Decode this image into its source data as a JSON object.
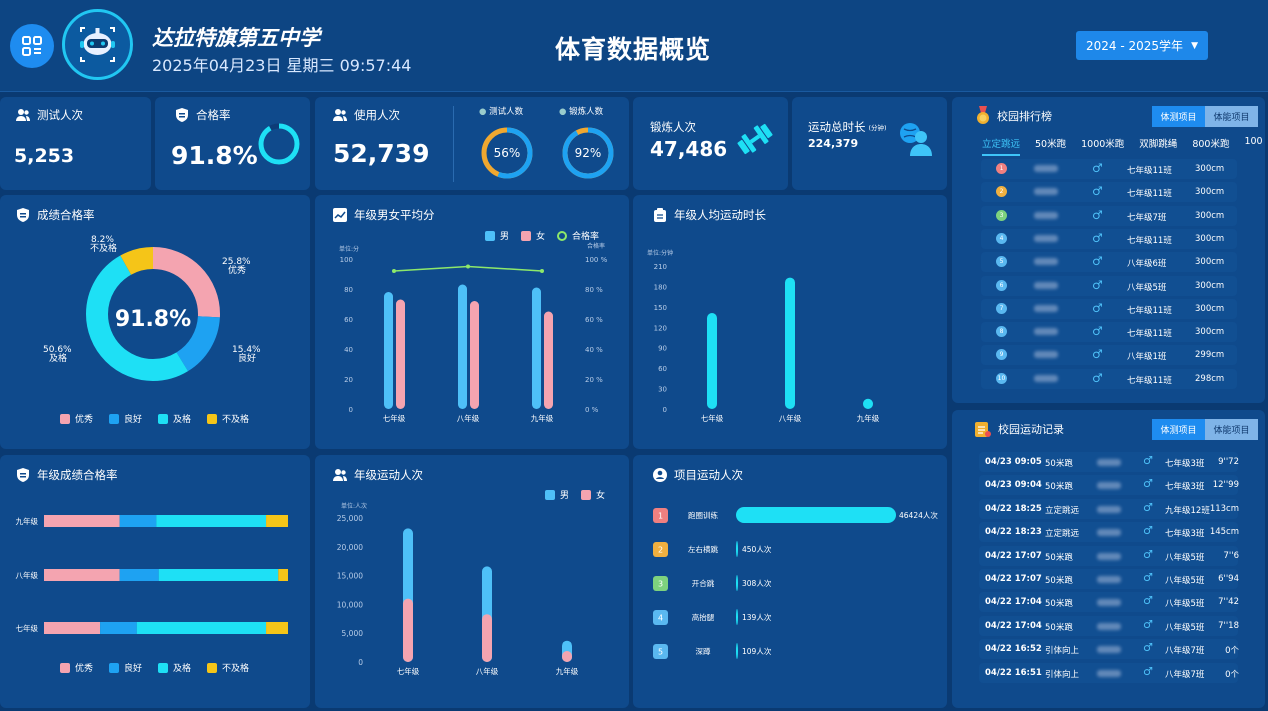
{
  "header": {
    "school_name": "达拉特旗第五中学",
    "datetime": "2025年04月23日 星期三 09:57:44",
    "title": "体育数据概览",
    "year_select": "2024 - 2025学年"
  },
  "stats": {
    "test_count_label": "测试人次",
    "test_count": "5,253",
    "pass_rate_label": "合格率",
    "pass_rate": "91.8%",
    "pass_rate_value": 91.8,
    "usage_label": "使用人次",
    "usage": "52,739",
    "test_people_label": "测试人数",
    "test_people_pct": "56%",
    "test_people_value": 56,
    "exercise_people_label": "锻炼人数",
    "exercise_people_pct": "92%",
    "exercise_people_value": 92,
    "exercise_count_label": "锻炼人次",
    "exercise_count": "47,486",
    "duration_label": "运动总时长",
    "duration_unit": "(分钟)",
    "duration": "224,379"
  },
  "score_pass": {
    "title": "成绩合格率",
    "center": "91.8%",
    "segments": [
      {
        "name": "优秀",
        "pct": 25.8,
        "label": "25.8%",
        "color": "#f4a4b0"
      },
      {
        "name": "良好",
        "pct": 15.4,
        "label": "15.4%",
        "color": "#1ea2f2"
      },
      {
        "name": "及格",
        "pct": 50.6,
        "label": "50.6%",
        "color": "#1ee0f5"
      },
      {
        "name": "不及格",
        "pct": 8.2,
        "label": "8.2%",
        "color": "#f5c518"
      }
    ],
    "legend": [
      "优秀",
      "良好",
      "及格",
      "不及格"
    ]
  },
  "grade_avg": {
    "title": "年级男女平均分",
    "legend_male": "男",
    "legend_female": "女",
    "legend_rate": "合格率",
    "left_unit": "单位:分",
    "right_unit": "合格率",
    "chart_data": {
      "type": "bar",
      "categories": [
        "七年级",
        "八年级",
        "九年级"
      ],
      "series": [
        {
          "name": "男",
          "values": [
            78,
            83,
            81
          ]
        },
        {
          "name": "女",
          "values": [
            73,
            72,
            65
          ]
        },
        {
          "name": "合格率",
          "values": [
            92,
            95,
            92
          ]
        }
      ],
      "ylim": [
        0,
        100
      ],
      "y_ticks": [
        "100",
        "80",
        "60",
        "40",
        "20",
        "0"
      ],
      "y2_ticks": [
        "100 %",
        "80 %",
        "60 %",
        "40 %",
        "20 %",
        "0 %"
      ]
    }
  },
  "grade_duration": {
    "title": "年级人均运动时长",
    "unit": "单位:分钟",
    "chart_data": {
      "type": "bar",
      "categories": [
        "七年级",
        "八年级",
        "九年级"
      ],
      "values": [
        141,
        193,
        15
      ],
      "ylim": [
        0,
        210
      ],
      "y_ticks": [
        "210",
        "180",
        "150",
        "120",
        "90",
        "60",
        "30",
        "0"
      ]
    }
  },
  "rank": {
    "title": "校园排行榜",
    "tab1": "体测项目",
    "tab2": "体能项目",
    "subtabs": [
      "立定跳远",
      "50米跑",
      "1000米跑",
      "双脚跳绳",
      "800米跑",
      "100"
    ],
    "rows": [
      {
        "no": "1",
        "cls": "七年级11班",
        "val": "300cm",
        "c": "#f08080"
      },
      {
        "no": "2",
        "cls": "七年级11班",
        "val": "300cm",
        "c": "#f0b040"
      },
      {
        "no": "3",
        "cls": "七年级7班",
        "val": "300cm",
        "c": "#7ed27e"
      },
      {
        "no": "4",
        "cls": "七年级11班",
        "val": "300cm",
        "c": "#5ab8f0"
      },
      {
        "no": "5",
        "cls": "八年级6班",
        "val": "300cm",
        "c": "#5ab8f0"
      },
      {
        "no": "6",
        "cls": "八年级5班",
        "val": "300cm",
        "c": "#5ab8f0"
      },
      {
        "no": "7",
        "cls": "七年级11班",
        "val": "300cm",
        "c": "#5ab8f0"
      },
      {
        "no": "8",
        "cls": "七年级11班",
        "val": "300cm",
        "c": "#5ab8f0"
      },
      {
        "no": "9",
        "cls": "八年级1班",
        "val": "299cm",
        "c": "#5ab8f0"
      },
      {
        "no": "10",
        "cls": "七年级11班",
        "val": "298cm",
        "c": "#5ab8f0"
      }
    ],
    "gender": "♂"
  },
  "grade_pass": {
    "title": "年级成绩合格率",
    "chart_data": {
      "type": "bar",
      "categories": [
        "九年级",
        "八年级",
        "七年级"
      ],
      "series": [
        {
          "name": "优秀",
          "values": [
            31,
            31,
            23
          ]
        },
        {
          "name": "良好",
          "values": [
            15,
            16,
            15
          ]
        },
        {
          "name": "及格",
          "values": [
            45,
            49,
            53
          ]
        },
        {
          "name": "不及格",
          "values": [
            9,
            4,
            9
          ]
        }
      ]
    },
    "legend": [
      "优秀",
      "良好",
      "及格",
      "不及格"
    ]
  },
  "grade_sport": {
    "title": "年级运动人次",
    "legend_male": "男",
    "legend_female": "女",
    "unit": "单位:人次",
    "chart_data": {
      "type": "bar",
      "categories": [
        "七年级",
        "八年级",
        "九年级"
      ],
      "series": [
        {
          "name": "男",
          "values": [
            12200,
            8300,
            1800
          ]
        },
        {
          "name": "女",
          "values": [
            11000,
            8300,
            1900
          ]
        }
      ],
      "ylim": [
        0,
        25000
      ],
      "y_ticks": [
        "25,000",
        "20,000",
        "15,000",
        "10,000",
        "5,000",
        "0"
      ]
    }
  },
  "project": {
    "title": "项目运动人次",
    "chart_data": {
      "type": "bar",
      "categories": [
        "跑圈训练",
        "左右横跳",
        "开合跳",
        "高抬腿",
        "深蹲"
      ],
      "values": [
        46424,
        450,
        308,
        139,
        109
      ],
      "labels": [
        "46424人次",
        "450人次",
        "308人次",
        "139人次",
        "109人次"
      ]
    },
    "colors": [
      "#f08080",
      "#f0b040",
      "#7ed27e",
      "#5ab8f0",
      "#5ab8f0"
    ],
    "numbers": [
      "1",
      "2",
      "3",
      "4",
      "5"
    ]
  },
  "records": {
    "title": "校园运动记录",
    "tab1": "体测项目",
    "tab2": "体能项目",
    "gender": "♂",
    "rows": [
      {
        "t": "04/23 09:05",
        "p": "50米跑",
        "c": "七年级3班",
        "v": "9''72"
      },
      {
        "t": "04/23 09:04",
        "p": "50米跑",
        "c": "七年级3班",
        "v": "12''99"
      },
      {
        "t": "04/22 18:25",
        "p": "立定跳远",
        "c": "九年级12班",
        "v": "113cm"
      },
      {
        "t": "04/22 18:23",
        "p": "立定跳远",
        "c": "七年级3班",
        "v": "145cm"
      },
      {
        "t": "04/22 17:07",
        "p": "50米跑",
        "c": "八年级5班",
        "v": "7''6"
      },
      {
        "t": "04/22 17:07",
        "p": "50米跑",
        "c": "八年级5班",
        "v": "6''94"
      },
      {
        "t": "04/22 17:04",
        "p": "50米跑",
        "c": "八年级5班",
        "v": "7''42"
      },
      {
        "t": "04/22 17:04",
        "p": "50米跑",
        "c": "八年级5班",
        "v": "7''18"
      },
      {
        "t": "04/22 16:52",
        "p": "引体向上",
        "c": "八年级7班",
        "v": "0个"
      },
      {
        "t": "04/22 16:51",
        "p": "引体向上",
        "c": "八年级7班",
        "v": "0个"
      }
    ]
  }
}
